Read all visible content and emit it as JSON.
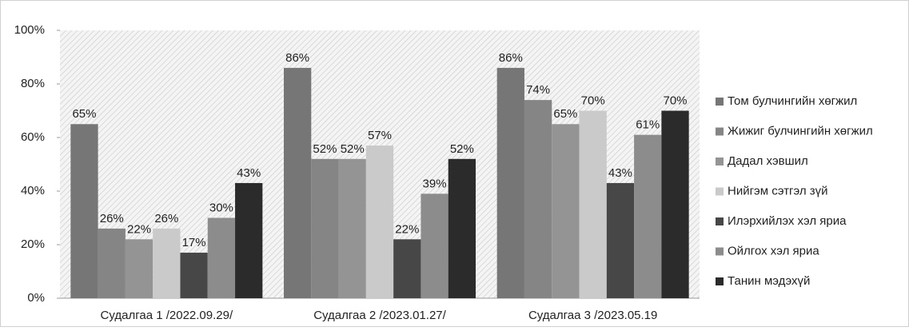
{
  "chart_data": {
    "type": "bar",
    "categories": [
      "Судалгаа 1 /2022.09.29/",
      "Судалгаа 2 /2023.01.27/",
      "Судалгаа 3 /2023.05.19"
    ],
    "series": [
      {
        "name": "Том булчингийн хөгжил",
        "color": "#767676",
        "values": [
          65,
          86,
          86
        ],
        "value_labels": [
          "65%",
          "86%",
          "86%"
        ]
      },
      {
        "name": "Жижиг булчингийн хөгжил",
        "color": "#858585",
        "values": [
          26,
          52,
          74
        ],
        "value_labels": [
          "26%",
          "52%",
          "74%"
        ]
      },
      {
        "name": "Дадал хэвшил",
        "color": "#949494",
        "values": [
          22,
          52,
          65
        ],
        "value_labels": [
          "22%",
          "52%",
          "65%"
        ]
      },
      {
        "name": "Нийгэм сэтгэл зүй",
        "color": "#cacaca",
        "values": [
          26,
          57,
          70
        ],
        "value_labels": [
          "26%",
          "57%",
          "70%"
        ]
      },
      {
        "name": "Илэрхийлэх хэл яриа",
        "color": "#474747",
        "values": [
          17,
          22,
          43
        ],
        "value_labels": [
          "17%",
          "22%",
          "43%"
        ]
      },
      {
        "name": "Ойлгох хэл яриа",
        "color": "#8c8c8c",
        "values": [
          30,
          39,
          61
        ],
        "value_labels": [
          "30%",
          "39%",
          "61%"
        ]
      },
      {
        "name": "Танин мэдэхүй",
        "color": "#2b2b2b",
        "values": [
          43,
          52,
          70
        ],
        "value_labels": [
          "43%",
          "52%",
          "70%"
        ]
      }
    ],
    "ylim": [
      0,
      100
    ],
    "yticks": [
      {
        "value": 0,
        "label": "0%"
      },
      {
        "value": 20,
        "label": "20%"
      },
      {
        "value": 40,
        "label": "40%"
      },
      {
        "value": 60,
        "label": "60%"
      },
      {
        "value": 80,
        "label": "80%"
      },
      {
        "value": 100,
        "label": "100%"
      }
    ],
    "legend": "right"
  }
}
